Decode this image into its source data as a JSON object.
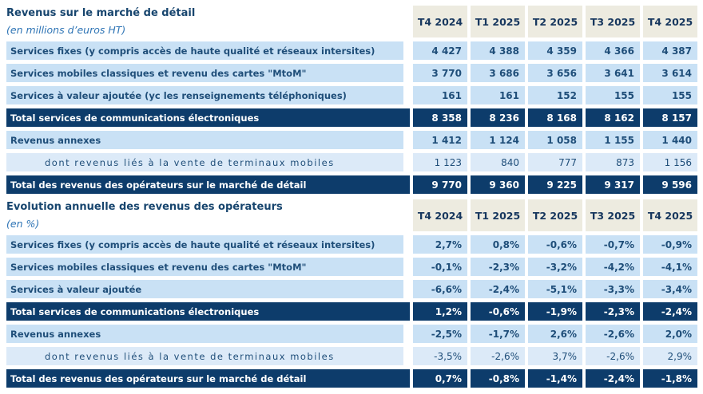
{
  "colors": {
    "navy_row_bg": "#0D3C6B",
    "light_row_bg": "#C9E1F5",
    "sub_row_bg": "#DCEAF8",
    "header_cell_bg": "#EDEBE0",
    "row_text_navy": "#1F4E79",
    "title_blue": "#17456E",
    "subtitle_blue": "#2E74B5",
    "total_row_text": "#FFFFFF"
  },
  "table1": {
    "title": "Revenus sur le marché de détail",
    "subtitle": "(en millions d’euros HT)",
    "columns": [
      "T4 2024",
      "T1 2025",
      "T2 2025",
      "T3 2025",
      "T4 2025"
    ],
    "rows": [
      {
        "label": "Services fixes (y compris accès de haute qualité et réseaux intersites)",
        "values": [
          "4 427",
          "4 388",
          "4 359",
          "4 366",
          "4 387"
        ]
      },
      {
        "label": "Services mobiles classiques et revenu des cartes \"MtoM\"",
        "values": [
          "3 770",
          "3 686",
          "3 656",
          "3 641",
          "3 614"
        ]
      },
      {
        "label": "Services à valeur ajoutée (yc les renseignements téléphoniques)",
        "values": [
          "161",
          "161",
          "152",
          "155",
          "155"
        ]
      },
      {
        "label": "Total services de communications électroniques",
        "values": [
          "8 358",
          "8 236",
          "8 168",
          "8 162",
          "8 157"
        ]
      },
      {
        "label": "Revenus annexes",
        "values": [
          "1 412",
          "1 124",
          "1 058",
          "1 155",
          "1 440"
        ]
      },
      {
        "label": "dont revenus liés à la vente de terminaux mobiles",
        "values": [
          "1 123",
          "840",
          "777",
          "873",
          "1 156"
        ]
      },
      {
        "label": "Total des revenus des opérateurs sur le marché de détail",
        "values": [
          "9 770",
          "9 360",
          "9 225",
          "9 317",
          "9 596"
        ]
      }
    ]
  },
  "table2": {
    "title": "Evolution annuelle des revenus des opérateurs",
    "subtitle": "(en %)",
    "columns": [
      "T4 2024",
      "T1 2025",
      "T2 2025",
      "T3 2025",
      "T4 2025"
    ],
    "rows": [
      {
        "label": "Services fixes (y compris accès de haute qualité et réseaux intersites)",
        "values": [
          "2,7%",
          "0,8%",
          "-0,6%",
          "-0,7%",
          "-0,9%"
        ]
      },
      {
        "label": "Services mobiles classiques et revenu des cartes \"MtoM\"",
        "values": [
          "-0,1%",
          "-2,3%",
          "-3,2%",
          "-4,2%",
          "-4,1%"
        ]
      },
      {
        "label": "Services à valeur ajoutée",
        "values": [
          "-6,6%",
          "-2,4%",
          "-5,1%",
          "-3,3%",
          "-3,4%"
        ]
      },
      {
        "label": "Total services de communications électroniques",
        "values": [
          "1,2%",
          "-0,6%",
          "-1,9%",
          "-2,3%",
          "-2,4%"
        ]
      },
      {
        "label": "Revenus annexes",
        "values": [
          "-2,5%",
          "-1,7%",
          "2,6%",
          "-2,6%",
          "2,0%"
        ]
      },
      {
        "label": "dont revenus liés à la vente de terminaux mobiles",
        "values": [
          "-3,5%",
          "-2,6%",
          "3,7%",
          "-2,6%",
          "2,9%"
        ]
      },
      {
        "label": "Total des revenus des opérateurs sur le marché de détail",
        "values": [
          "0,7%",
          "-0,8%",
          "-1,4%",
          "-2,4%",
          "-1,8%"
        ]
      }
    ]
  }
}
